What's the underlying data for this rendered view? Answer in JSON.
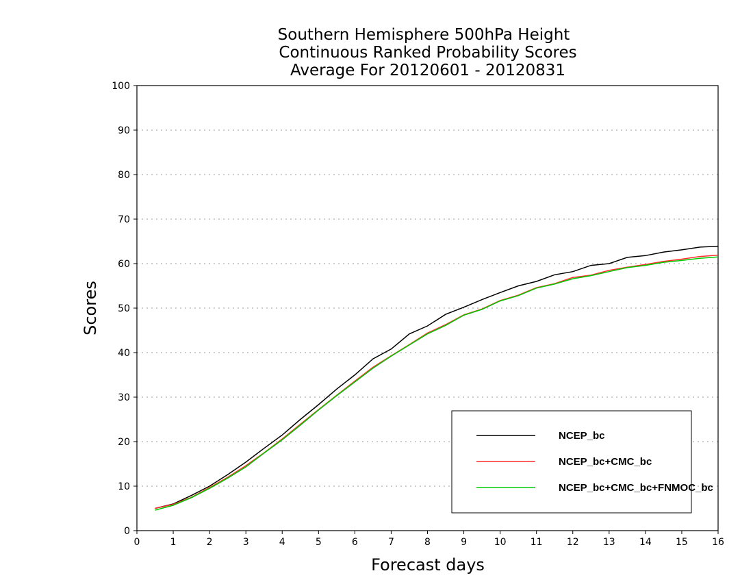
{
  "title": {
    "line1": "Southern Hemisphere 500hPa Height",
    "line2": "Continuous Ranked Probability Scores",
    "line3": "Average For 20120601 - 20120831"
  },
  "chart_data": {
    "type": "line",
    "title": "Southern Hemisphere 500hPa Height Continuous Ranked Probability Scores Average For 20120601 - 20120831",
    "xlabel": "Forecast days",
    "ylabel": "Scores",
    "xlim": [
      0,
      16
    ],
    "ylim": [
      0,
      100
    ],
    "xticks": [
      "0",
      "1",
      "2",
      "3",
      "4",
      "5",
      "6",
      "7",
      "8",
      "9",
      "10",
      "11",
      "12",
      "13",
      "14",
      "15",
      "16"
    ],
    "yticks": [
      "0",
      "10",
      "20",
      "30",
      "40",
      "50",
      "60",
      "70",
      "80",
      "90",
      "100"
    ],
    "grid": true,
    "legend_position": "bottom-right",
    "x": [
      0.5,
      1.0,
      1.5,
      2.0,
      2.5,
      3.0,
      3.5,
      4.0,
      4.5,
      5.0,
      5.5,
      6.0,
      6.5,
      7.0,
      7.5,
      8.0,
      8.5,
      9.0,
      9.5,
      10.0,
      10.5,
      11.0,
      11.5,
      12.0,
      12.5,
      13.0,
      13.5,
      14.0,
      14.5,
      15.0,
      15.5,
      16.0
    ],
    "series": [
      {
        "name": "NCEP_bc",
        "color": "#000000",
        "values": [
          5.0,
          6.0,
          7.9,
          10.0,
          12.6,
          15.4,
          18.5,
          21.5,
          25.0,
          28.3,
          31.8,
          35.0,
          38.6,
          40.8,
          44.2,
          46.0,
          48.6,
          50.2,
          51.9,
          53.5,
          55.0,
          56.0,
          57.5,
          58.2,
          59.6,
          60.0,
          61.4,
          61.8,
          62.6,
          63.1,
          63.7,
          63.9
        ]
      },
      {
        "name": "NCEP_bc+CMC_bc",
        "color": "#ff2a2a",
        "values": [
          5.0,
          5.9,
          7.5,
          9.7,
          12.0,
          14.6,
          17.5,
          20.6,
          23.9,
          27.2,
          30.4,
          33.6,
          36.7,
          39.3,
          41.8,
          44.4,
          46.3,
          48.5,
          49.8,
          51.7,
          52.9,
          54.6,
          55.5,
          56.9,
          57.4,
          58.5,
          59.2,
          59.8,
          60.5,
          61.0,
          61.6,
          61.9
        ]
      },
      {
        "name": "NCEP_bc+CMC_bc+FNMOC_bc",
        "color": "#00cc00",
        "values": [
          4.6,
          5.7,
          7.4,
          9.5,
          11.8,
          14.3,
          17.4,
          20.4,
          23.7,
          27.1,
          30.3,
          33.4,
          36.5,
          39.2,
          41.7,
          44.2,
          46.1,
          48.4,
          49.7,
          51.6,
          52.8,
          54.5,
          55.4,
          56.6,
          57.3,
          58.2,
          59.1,
          59.6,
          60.3,
          60.7,
          61.2,
          61.5
        ]
      }
    ]
  }
}
